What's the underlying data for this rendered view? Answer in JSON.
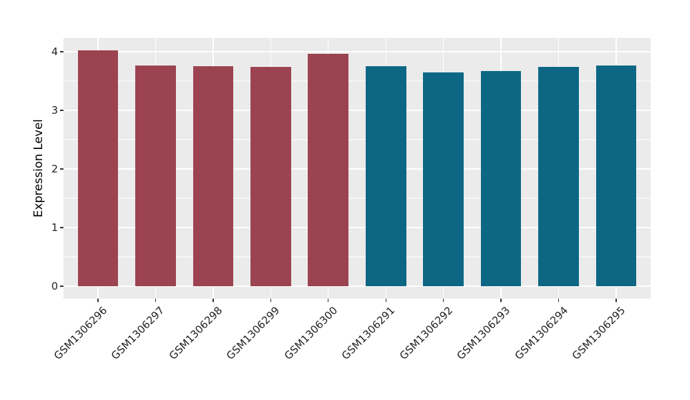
{
  "chart_data": {
    "type": "bar",
    "title": "",
    "xlabel": "",
    "ylabel": "Expression Level",
    "categories": [
      "GSM1306296",
      "GSM1306297",
      "GSM1306298",
      "GSM1306299",
      "GSM1306300",
      "GSM1306291",
      "GSM1306292",
      "GSM1306293",
      "GSM1306294",
      "GSM1306295"
    ],
    "values": [
      4.02,
      3.76,
      3.75,
      3.74,
      3.96,
      3.75,
      3.65,
      3.67,
      3.74,
      3.77
    ],
    "bar_colors": [
      "#9C4351",
      "#9C4351",
      "#9C4351",
      "#9C4351",
      "#9C4351",
      "#0D6784",
      "#0D6784",
      "#0D6784",
      "#0D6784",
      "#0D6784"
    ],
    "group_colors": {
      "red_group": "#9C4351",
      "teal_group": "#0D6784"
    },
    "yticks": [
      "0",
      "1",
      "2",
      "3",
      "4"
    ],
    "ytick_values": [
      0,
      1,
      2,
      3,
      4
    ],
    "ylim": [
      0,
      4.24
    ],
    "bar_width_fraction": 0.705,
    "grid": {
      "horizontal_major": "on",
      "horizontal_minor": "on",
      "vertical_major": "on",
      "vertical_minor": "off"
    },
    "legend": "none",
    "style": {
      "panel_background": "#EBEBEB",
      "grid_color": "#FFFFFF",
      "tick_color": "#333333",
      "axis_text_color": "#222222",
      "axis_title_color": "#000000",
      "figure_background": "#FFFFFF"
    }
  }
}
